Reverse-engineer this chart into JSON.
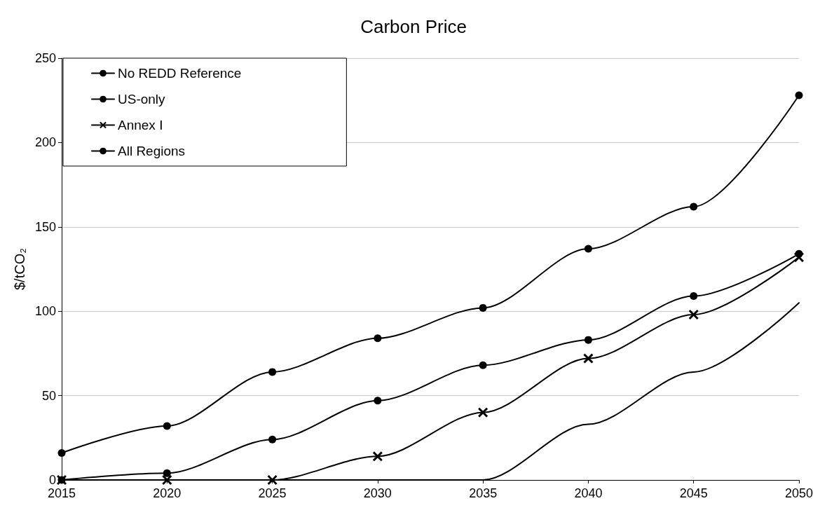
{
  "chart_data": {
    "type": "line",
    "title": "Carbon Price",
    "ylabel": "$/tCO₂",
    "categories": [
      "2015",
      "2020",
      "2025",
      "2030",
      "2035",
      "2040",
      "2045",
      "2050"
    ],
    "series": [
      {
        "name": "No REDD Reference",
        "color": "#000000",
        "marker": "circle",
        "values": [
          16,
          32,
          64,
          84,
          102,
          137,
          162,
          228
        ]
      },
      {
        "name": "US-only",
        "color": "#000000",
        "marker": "none",
        "values": [
          0,
          0,
          0,
          0,
          0,
          33,
          64,
          105
        ]
      },
      {
        "name": "Annex I",
        "color": "#000000",
        "marker": "cross",
        "values": [
          0,
          0,
          0,
          14,
          40,
          72,
          98,
          132
        ]
      },
      {
        "name": "All Regions",
        "color": "#000000",
        "marker": "circle",
        "values": [
          0,
          4,
          24,
          47,
          68,
          83,
          109,
          134
        ]
      }
    ],
    "ylim": [
      0,
      250
    ],
    "yticks": [
      0,
      50,
      100,
      150,
      200,
      250
    ],
    "grid": "y",
    "legend": "top left"
  }
}
